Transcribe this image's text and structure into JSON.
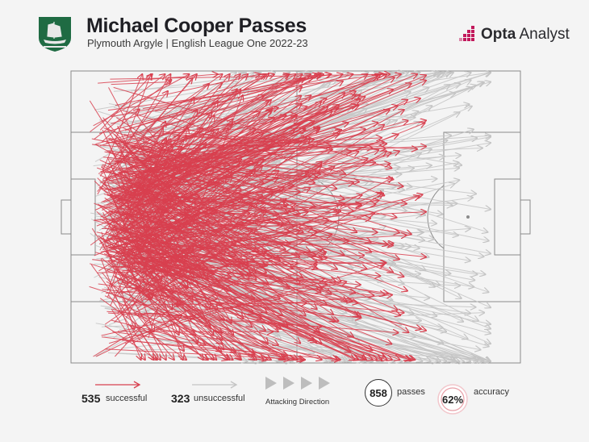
{
  "header": {
    "title": "Michael Cooper Passes",
    "subtitle": "Plymouth Argyle | English League One 2022-23",
    "brand_bold": "Opta",
    "brand_light": " Analyst"
  },
  "colors": {
    "successful": "#d8404f",
    "unsuccessful": "#c4c4c4",
    "pitch_lines": "#8a8a8a",
    "crest": "#1f6b43",
    "brand_accent": "#c2185b"
  },
  "legend": {
    "successful_count": "535",
    "successful_label": "successful",
    "unsuccessful_count": "323",
    "unsuccessful_label": "unsuccessful",
    "direction_label": "Attacking Direction",
    "passes_count": "858",
    "passes_label": "passes",
    "accuracy_value": "62%",
    "accuracy_label": "accuracy"
  },
  "chart_data": {
    "type": "scatter",
    "description_type": "pass-map",
    "total_passes": 858,
    "successful": 535,
    "unsuccessful": 323,
    "accuracy": 0.62,
    "attacking_direction": "left-to-right",
    "x_range": [
      0,
      100
    ],
    "y_range": [
      0,
      100
    ]
  }
}
